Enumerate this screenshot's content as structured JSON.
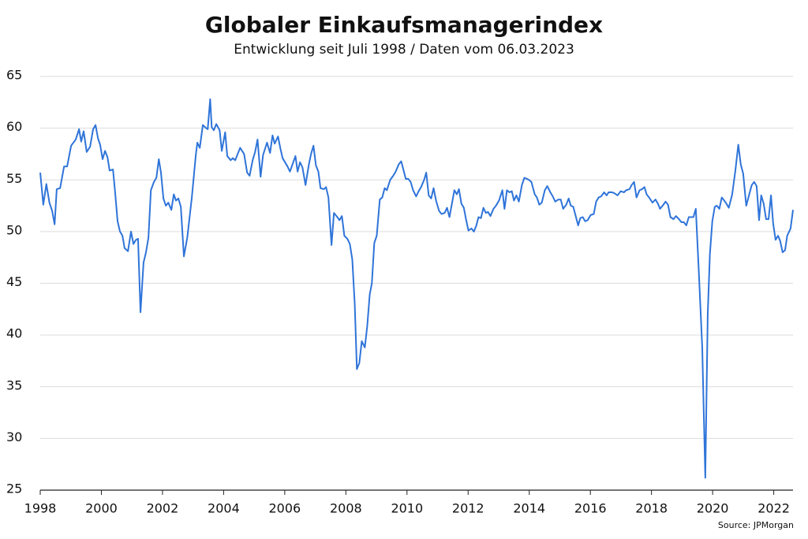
{
  "chart_data": {
    "type": "line",
    "title": "Globaler Einkaufsmanagerindex",
    "subtitle": "Entwicklung seit Juli 1998 / Daten vom 06.03.2023",
    "source": "Source: JPMorgan",
    "color": "#2f74d9",
    "grid": true,
    "xlim": [
      1998,
      2022.63
    ],
    "xticks": [
      1998,
      2000,
      2002,
      2004,
      2006,
      2008,
      2010,
      2012,
      2014,
      2016,
      2018,
      2020,
      2022
    ],
    "ylim": [
      25,
      65
    ],
    "yticks": [
      25,
      30,
      35,
      40,
      45,
      50,
      55,
      60,
      65
    ],
    "x": [
      1998.0,
      1998.1,
      1998.2,
      1998.3,
      1998.39,
      1998.47,
      1998.54,
      1998.65,
      1998.78,
      1998.88,
      1999.01,
      1999.16,
      1999.27,
      1999.34,
      1999.42,
      1999.52,
      1999.63,
      1999.73,
      1999.81,
      1999.89,
      1999.96,
      2000.04,
      2000.12,
      2000.2,
      2000.27,
      2000.38,
      2000.45,
      2000.53,
      2000.61,
      2000.69,
      2000.76,
      2000.87,
      2000.97,
      2001.05,
      2001.13,
      2001.2,
      2001.28,
      2001.38,
      2001.46,
      2001.54,
      2001.62,
      2001.72,
      2001.8,
      2001.88,
      2001.95,
      2002.03,
      2002.11,
      2002.19,
      2002.29,
      2002.37,
      2002.44,
      2002.52,
      2002.6,
      2002.7,
      2002.81,
      2002.96,
      2003.09,
      2003.14,
      2003.22,
      2003.32,
      2003.43,
      2003.48,
      2003.56,
      2003.61,
      2003.68,
      2003.76,
      2003.87,
      2003.94,
      2004.05,
      2004.12,
      2004.23,
      2004.3,
      2004.38,
      2004.54,
      2004.67,
      2004.77,
      2004.85,
      2004.95,
      2005.03,
      2005.11,
      2005.21,
      2005.29,
      2005.42,
      2005.52,
      2005.6,
      2005.67,
      2005.78,
      2005.86,
      2005.93,
      2006.09,
      2006.17,
      2006.35,
      2006.42,
      2006.5,
      2006.58,
      2006.68,
      2006.79,
      2006.86,
      2006.94,
      2007.02,
      2007.1,
      2007.17,
      2007.28,
      2007.35,
      2007.43,
      2007.53,
      2007.61,
      2007.72,
      2007.79,
      2007.87,
      2007.95,
      2008.05,
      2008.13,
      2008.21,
      2008.29,
      2008.36,
      2008.44,
      2008.52,
      2008.62,
      2008.7,
      2008.78,
      2008.85,
      2008.93,
      2009.01,
      2009.11,
      2009.19,
      2009.27,
      2009.34,
      2009.45,
      2009.55,
      2009.63,
      2009.73,
      2009.81,
      2009.89,
      2009.96,
      2010.04,
      2010.12,
      2010.2,
      2010.3,
      2010.38,
      2010.46,
      2010.56,
      2010.63,
      2010.71,
      2010.79,
      2010.87,
      2010.95,
      2011.05,
      2011.13,
      2011.23,
      2011.31,
      2011.39,
      2011.47,
      2011.55,
      2011.63,
      2011.7,
      2011.78,
      2011.86,
      2011.93,
      2012.01,
      2012.11,
      2012.19,
      2012.27,
      2012.34,
      2012.42,
      2012.5,
      2012.58,
      2012.65,
      2012.73,
      2012.83,
      2012.91,
      2013.01,
      2013.12,
      2013.19,
      2013.27,
      2013.35,
      2013.43,
      2013.5,
      2013.58,
      2013.66,
      2013.76,
      2013.84,
      2013.92,
      2013.99,
      2014.07,
      2014.18,
      2014.25,
      2014.33,
      2014.41,
      2014.51,
      2014.59,
      2014.69,
      2014.77,
      2014.85,
      2014.95,
      2015.03,
      2015.11,
      2015.21,
      2015.29,
      2015.36,
      2015.44,
      2015.52,
      2015.6,
      2015.67,
      2015.75,
      2015.83,
      2015.91,
      2016.01,
      2016.11,
      2016.19,
      2016.27,
      2016.35,
      2016.45,
      2016.53,
      2016.6,
      2016.71,
      2016.79,
      2016.89,
      2016.99,
      2017.1,
      2017.17,
      2017.28,
      2017.35,
      2017.43,
      2017.51,
      2017.61,
      2017.69,
      2017.77,
      2017.84,
      2017.92,
      2018.03,
      2018.13,
      2018.21,
      2018.28,
      2018.39,
      2018.46,
      2018.54,
      2018.62,
      2018.72,
      2018.8,
      2018.9,
      2018.98,
      2019.06,
      2019.14,
      2019.22,
      2019.29,
      2019.37,
      2019.45,
      2019.55,
      2019.66,
      2019.76,
      2019.84,
      2019.91,
      2019.99,
      2020.07,
      2020.14,
      2020.22,
      2020.3,
      2020.38,
      2020.45,
      2020.53,
      2020.64,
      2020.74,
      2020.84,
      2020.92,
      2021.0,
      2021.1,
      2021.18,
      2021.28,
      2021.36,
      2021.44,
      2021.52,
      2021.59,
      2021.67,
      2021.75,
      2021.83,
      2021.91,
      2021.98,
      2022.06,
      2022.14,
      2022.21,
      2022.29,
      2022.37,
      2022.44,
      2022.55,
      2022.63
    ],
    "values": [
      55.7,
      52.6,
      54.6,
      52.8,
      52.0,
      50.7,
      54.1,
      54.2,
      56.3,
      56.3,
      58.3,
      58.9,
      59.9,
      58.7,
      59.7,
      57.7,
      58.2,
      59.9,
      60.3,
      59.0,
      58.4,
      57.0,
      57.8,
      57.2,
      55.9,
      56.0,
      53.8,
      51.0,
      50.0,
      49.6,
      48.4,
      48.1,
      50.0,
      48.8,
      49.2,
      49.3,
      42.2,
      47.0,
      48.0,
      49.4,
      54.0,
      54.8,
      55.2,
      57.0,
      55.7,
      53.2,
      52.5,
      52.8,
      52.1,
      53.6,
      53.0,
      53.2,
      52.4,
      47.6,
      49.4,
      53.3,
      57.4,
      58.6,
      58.1,
      60.3,
      60.0,
      59.9,
      62.8,
      60.1,
      59.8,
      60.4,
      59.8,
      57.8,
      59.6,
      57.3,
      56.9,
      57.1,
      56.9,
      58.1,
      57.5,
      55.7,
      55.4,
      56.9,
      57.7,
      58.9,
      55.3,
      57.4,
      58.6,
      57.6,
      59.3,
      58.5,
      59.2,
      58.0,
      57.1,
      56.3,
      55.8,
      57.3,
      55.8,
      56.7,
      56.2,
      54.5,
      56.5,
      57.5,
      58.3,
      56.4,
      55.8,
      54.2,
      54.1,
      54.3,
      53.3,
      48.7,
      51.8,
      51.4,
      51.1,
      51.5,
      49.6,
      49.3,
      48.8,
      47.3,
      43.0,
      36.7,
      37.3,
      39.4,
      38.8,
      40.9,
      43.9,
      45.0,
      48.9,
      49.6,
      53.1,
      53.3,
      54.2,
      54.0,
      55.0,
      55.4,
      55.8,
      56.5,
      56.8,
      55.9,
      55.1,
      55.1,
      54.8,
      54.0,
      53.4,
      53.9,
      54.3,
      55.0,
      55.7,
      53.5,
      53.2,
      54.2,
      53.0,
      52.0,
      51.7,
      51.8,
      52.3,
      51.4,
      52.7,
      54.0,
      53.6,
      54.1,
      52.7,
      52.3,
      51.2,
      50.1,
      50.3,
      50.0,
      50.6,
      51.4,
      51.3,
      52.3,
      51.8,
      51.9,
      51.5,
      52.2,
      52.5,
      53.0,
      54.0,
      52.2,
      54.0,
      53.8,
      53.9,
      53.0,
      53.5,
      52.9,
      54.5,
      55.2,
      55.1,
      55.0,
      54.8,
      53.6,
      53.3,
      52.6,
      52.8,
      54.0,
      54.4,
      53.8,
      53.4,
      52.9,
      53.1,
      53.1,
      52.2,
      52.6,
      53.2,
      52.5,
      52.4,
      51.5,
      50.6,
      51.3,
      51.4,
      51.0,
      51.1,
      51.6,
      51.7,
      52.9,
      53.3,
      53.4,
      53.8,
      53.5,
      53.8,
      53.8,
      53.7,
      53.5,
      53.9,
      53.8,
      54.0,
      54.1,
      54.5,
      54.8,
      53.3,
      54.0,
      54.1,
      54.3,
      53.6,
      53.3,
      52.8,
      53.1,
      52.7,
      52.2,
      52.6,
      52.9,
      52.6,
      51.4,
      51.2,
      51.5,
      51.2,
      50.9,
      50.9,
      50.6,
      51.4,
      51.4,
      51.4,
      52.2,
      46.0,
      38.8,
      26.2,
      42.0,
      47.8,
      51.0,
      52.4,
      52.5,
      52.2,
      53.3,
      53.0,
      52.7,
      52.3,
      53.6,
      55.8,
      58.4,
      56.5,
      55.6,
      52.5,
      53.4,
      54.5,
      54.8,
      54.4,
      51.1,
      53.5,
      52.7,
      51.2,
      51.2,
      53.5,
      50.8,
      49.2,
      49.6,
      49.1,
      48.0,
      48.2,
      49.6,
      50.3,
      52.1
    ]
  }
}
